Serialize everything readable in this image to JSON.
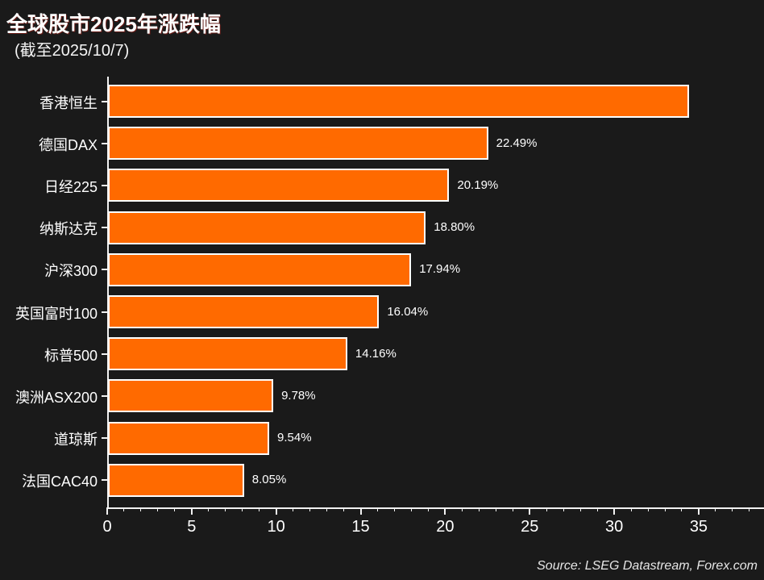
{
  "header": {
    "title": "全球股市2025年涨跌幅",
    "subtitle": "(截至2025/10/7)"
  },
  "footer": {
    "source": "Source: LSEG Datastream, Forex.com"
  },
  "colors": {
    "background": "#1a1a1a",
    "bar_fill": "#ff6a00",
    "bar_border": "#ffffff",
    "axis": "#f2f2f2",
    "text": "#ffffff"
  },
  "chart_data": {
    "type": "bar",
    "orientation": "horizontal",
    "title": "全球股市2025年涨跌幅",
    "subtitle": "(截至2025/10/7)",
    "categories": [
      "香港恒生",
      "德国DAX",
      "日经225",
      "纳斯达克",
      "沪深300",
      "英国富时100",
      "标普500",
      "澳洲ASX200",
      "道琼斯",
      "法国CAC40"
    ],
    "values": [
      34.4,
      22.49,
      20.19,
      18.8,
      17.94,
      16.04,
      14.16,
      9.78,
      9.54,
      8.05
    ],
    "data_labels": [
      "",
      "22.49%",
      "20.19%",
      "18.80%",
      "17.94%",
      "16.04%",
      "14.16%",
      "9.78%",
      "9.54%",
      "8.05%"
    ],
    "xlabel": "",
    "ylabel": "",
    "xlim": [
      0,
      38.8
    ],
    "xticks": [
      0,
      5,
      10,
      15,
      20,
      25,
      30,
      35
    ],
    "minor_tick_step": 1,
    "grid": false,
    "legend": null
  }
}
